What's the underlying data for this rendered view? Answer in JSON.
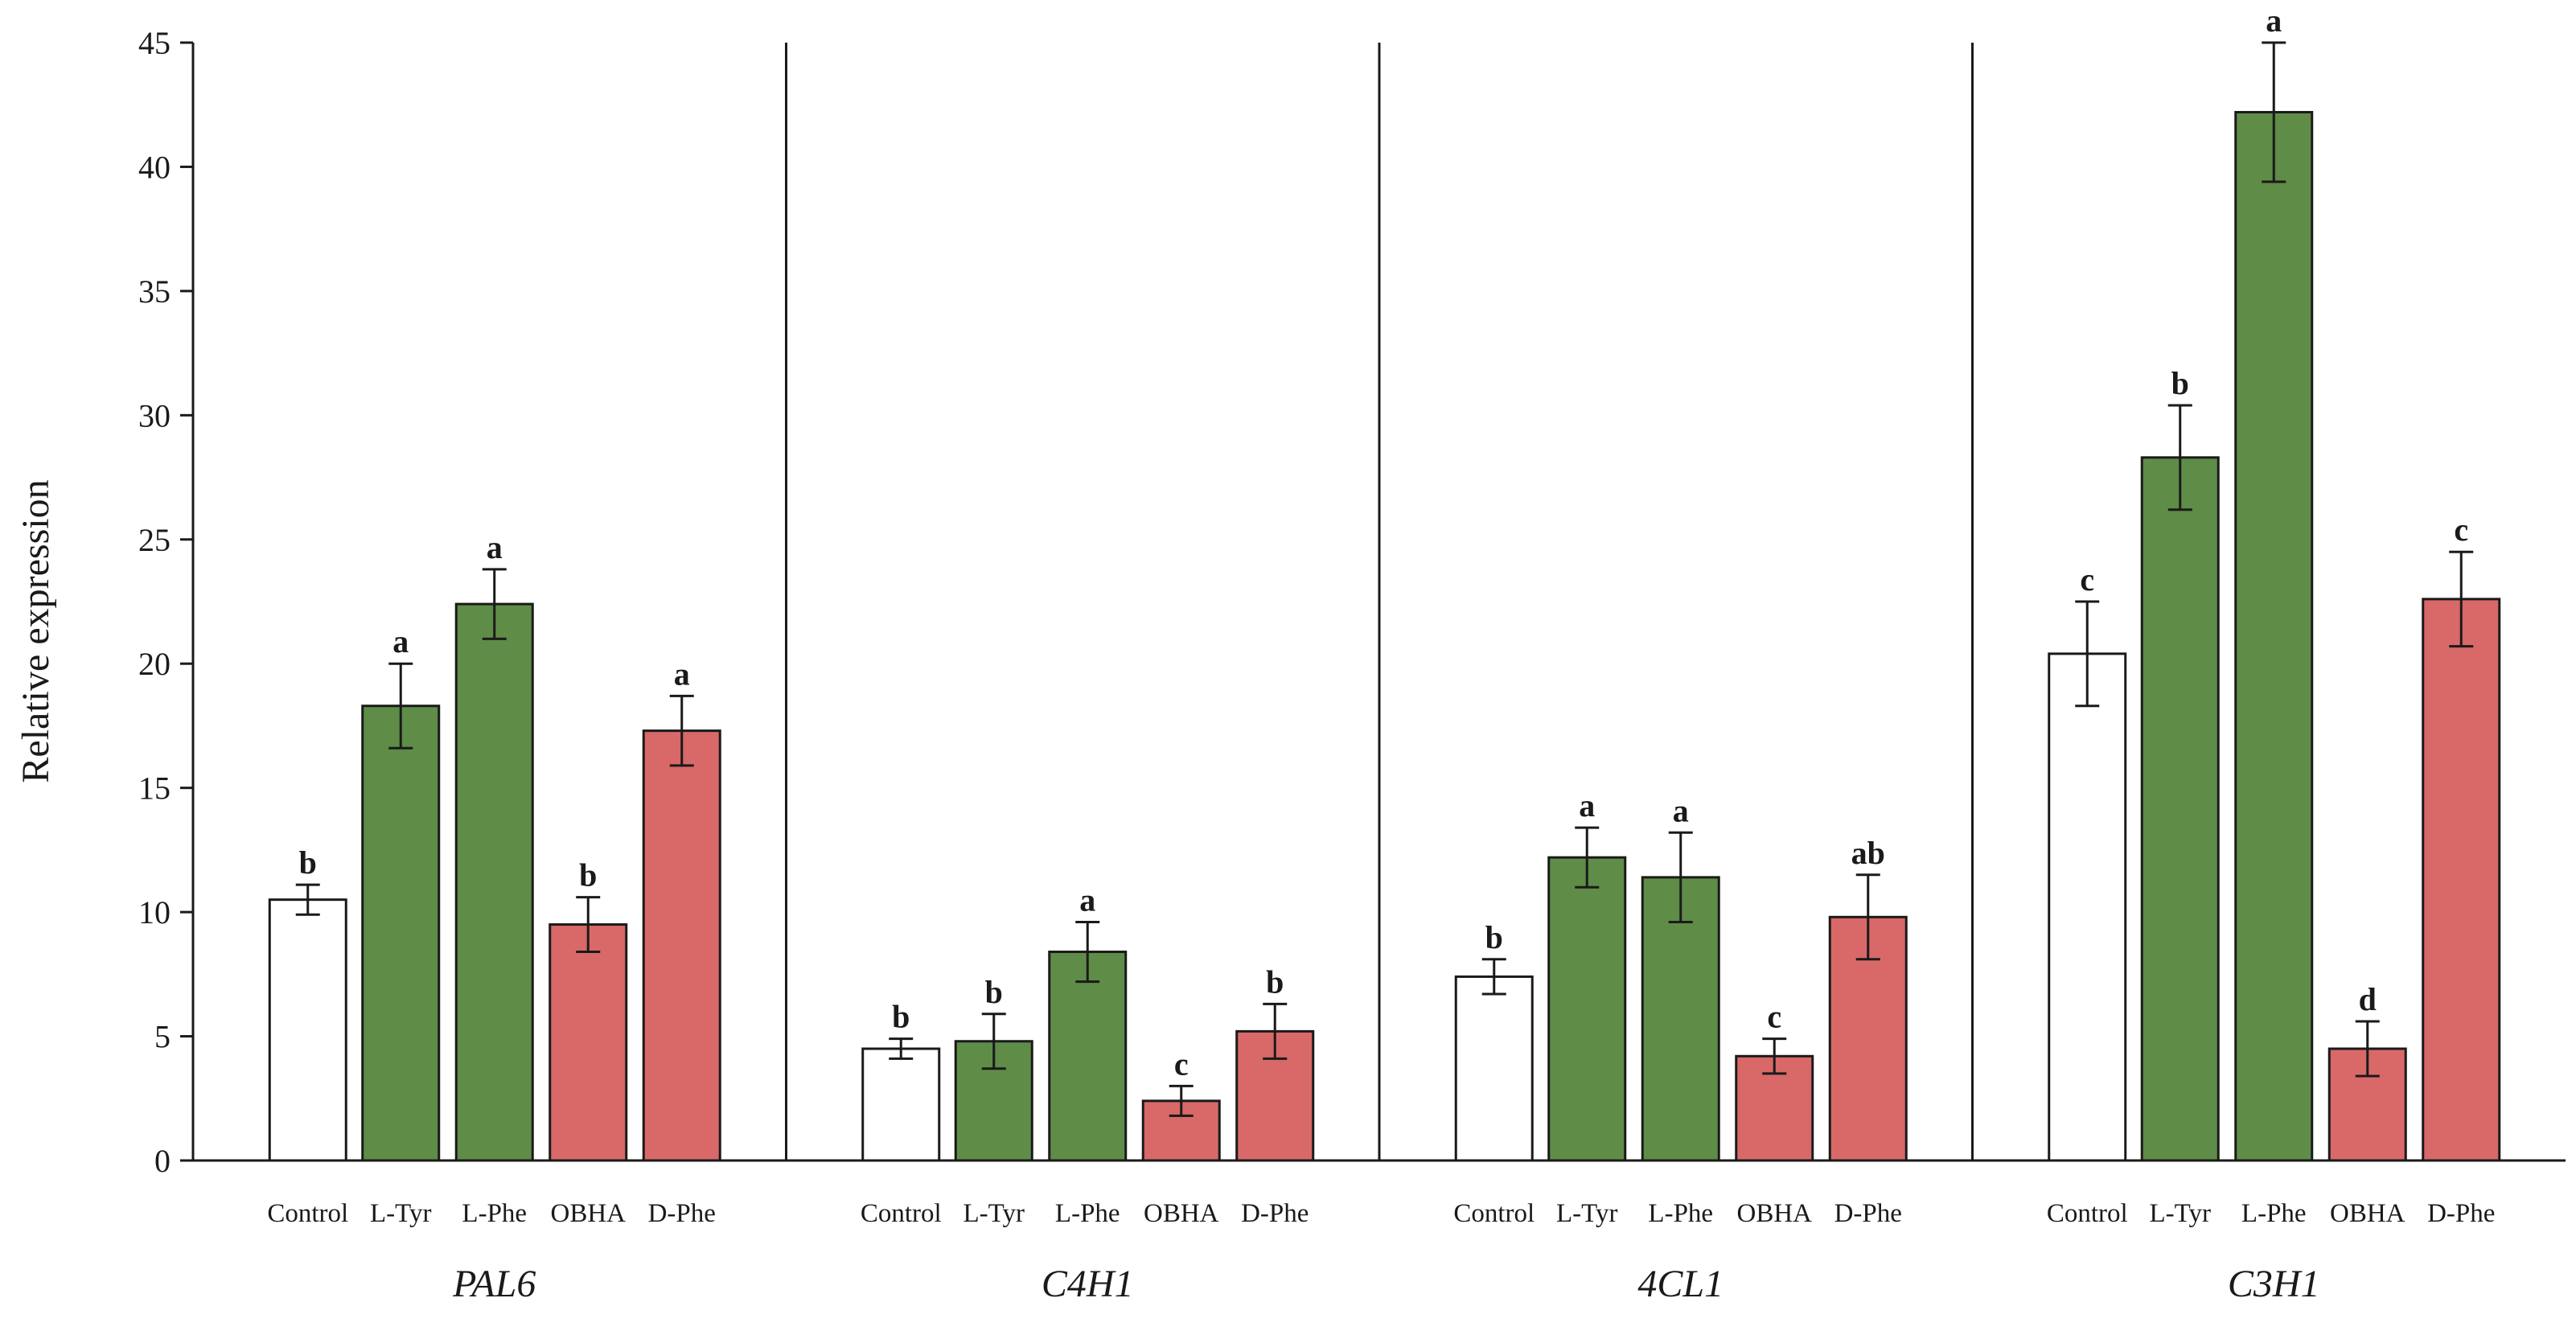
{
  "chart_data": {
    "type": "bar",
    "title": "",
    "xlabel": "",
    "ylabel": "Relative expression",
    "ylim": [
      0,
      45
    ],
    "yticks": [
      0,
      5,
      10,
      15,
      20,
      25,
      30,
      35,
      40,
      45
    ],
    "grid": false,
    "colors": {
      "Control": "#ffffff",
      "L-Tyr": "#5f8c47",
      "L-Phe": "#5f8c47",
      "OBHA": "#d96868",
      "D-Phe": "#d96868",
      "axis": "#1a1a1a"
    },
    "treatments": [
      "Control",
      "L-Tyr",
      "L-Phe",
      "OBHA",
      "D-Phe"
    ],
    "groups": [
      {
        "gene": "PAL6",
        "bars": [
          {
            "treatment": "Control",
            "value": 10.5,
            "error": 0.6,
            "significance": "b"
          },
          {
            "treatment": "L-Tyr",
            "value": 18.3,
            "error": 1.7,
            "significance": "a"
          },
          {
            "treatment": "L-Phe",
            "value": 22.4,
            "error": 1.4,
            "significance": "a"
          },
          {
            "treatment": "OBHA",
            "value": 9.5,
            "error": 1.1,
            "significance": "b"
          },
          {
            "treatment": "D-Phe",
            "value": 17.3,
            "error": 1.4,
            "significance": "a"
          }
        ]
      },
      {
        "gene": "C4H1",
        "bars": [
          {
            "treatment": "Control",
            "value": 4.5,
            "error": 0.4,
            "significance": "b"
          },
          {
            "treatment": "L-Tyr",
            "value": 4.8,
            "error": 1.1,
            "significance": "b"
          },
          {
            "treatment": "L-Phe",
            "value": 8.4,
            "error": 1.2,
            "significance": "a"
          },
          {
            "treatment": "OBHA",
            "value": 2.4,
            "error": 0.6,
            "significance": "c"
          },
          {
            "treatment": "D-Phe",
            "value": 5.2,
            "error": 1.1,
            "significance": "b"
          }
        ]
      },
      {
        "gene": "4CL1",
        "bars": [
          {
            "treatment": "Control",
            "value": 7.4,
            "error": 0.7,
            "significance": "b"
          },
          {
            "treatment": "L-Tyr",
            "value": 12.2,
            "error": 1.2,
            "significance": "a"
          },
          {
            "treatment": "L-Phe",
            "value": 11.4,
            "error": 1.8,
            "significance": "a"
          },
          {
            "treatment": "OBHA",
            "value": 4.2,
            "error": 0.7,
            "significance": "c"
          },
          {
            "treatment": "D-Phe",
            "value": 9.8,
            "error": 1.7,
            "significance": "ab"
          }
        ]
      },
      {
        "gene": "C3H1",
        "bars": [
          {
            "treatment": "Control",
            "value": 20.4,
            "error": 2.1,
            "significance": "c"
          },
          {
            "treatment": "L-Tyr",
            "value": 28.3,
            "error": 2.1,
            "significance": "b"
          },
          {
            "treatment": "L-Phe",
            "value": 42.2,
            "error": 2.8,
            "significance": "a"
          },
          {
            "treatment": "OBHA",
            "value": 4.5,
            "error": 1.1,
            "significance": "d"
          },
          {
            "treatment": "D-Phe",
            "value": 22.6,
            "error": 1.9,
            "significance": "c"
          }
        ]
      }
    ]
  }
}
